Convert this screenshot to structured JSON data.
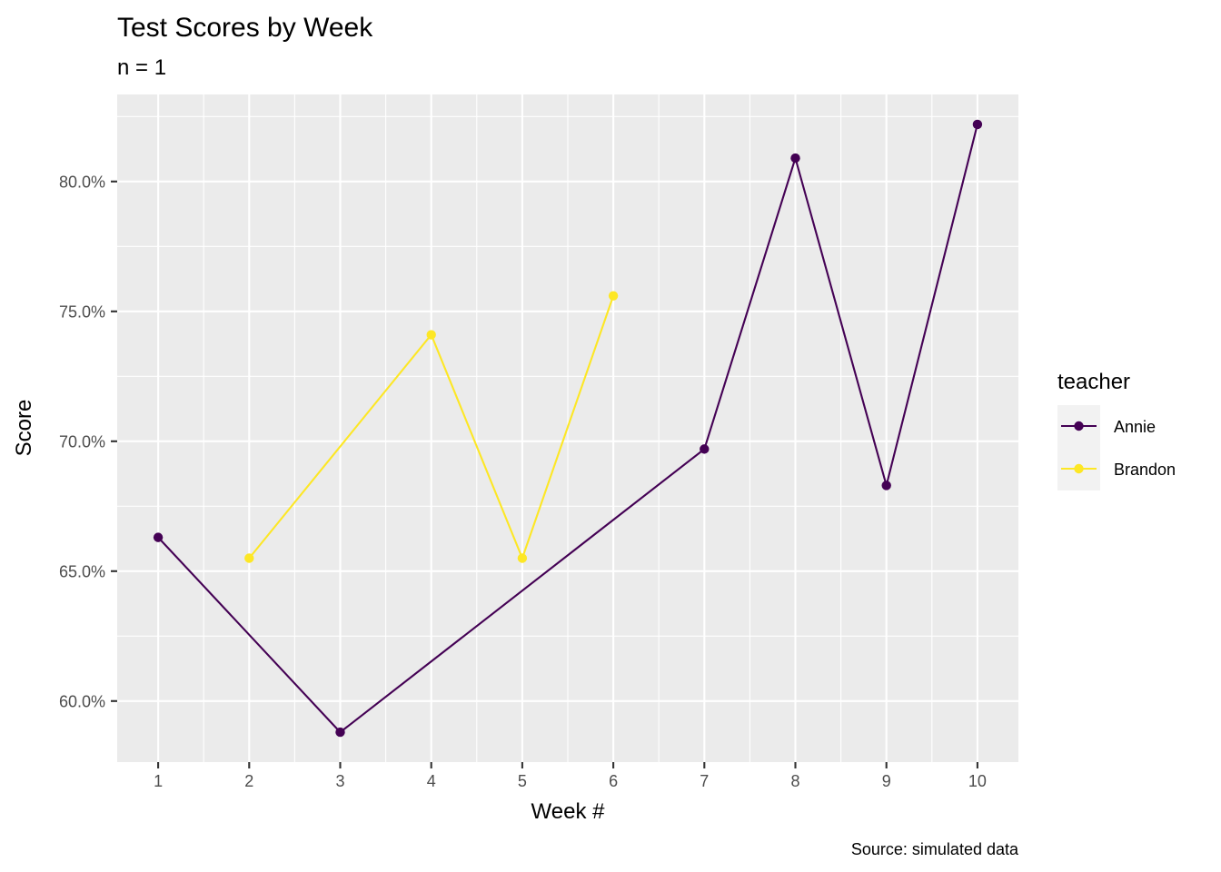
{
  "chart_data": {
    "type": "line",
    "title": "Test Scores by Week",
    "subtitle": "n = 1",
    "xlabel": "Week #",
    "ylabel": "Score",
    "caption": "Source: simulated data",
    "x_ticks": [
      1,
      2,
      3,
      4,
      5,
      6,
      7,
      8,
      9,
      10
    ],
    "y_ticks": [
      0.6,
      0.65,
      0.7,
      0.75,
      0.8
    ],
    "y_tick_labels": [
      "60.0%",
      "65.0%",
      "70.0%",
      "75.0%",
      "80.0%"
    ],
    "xlim": [
      0.55,
      10.45
    ],
    "ylim": [
      0.5765,
      0.8335
    ],
    "grid": true,
    "legend": {
      "title": "teacher",
      "placement": "right"
    },
    "series": [
      {
        "name": "Annie",
        "color": "#440154",
        "x": [
          1,
          3,
          7,
          8,
          9,
          10
        ],
        "y": [
          0.663,
          0.588,
          0.697,
          0.809,
          0.683,
          0.822
        ]
      },
      {
        "name": "Brandon",
        "color": "#FDE725",
        "x": [
          2,
          4,
          5,
          6
        ],
        "y": [
          0.655,
          0.741,
          0.655,
          0.756
        ]
      }
    ]
  }
}
